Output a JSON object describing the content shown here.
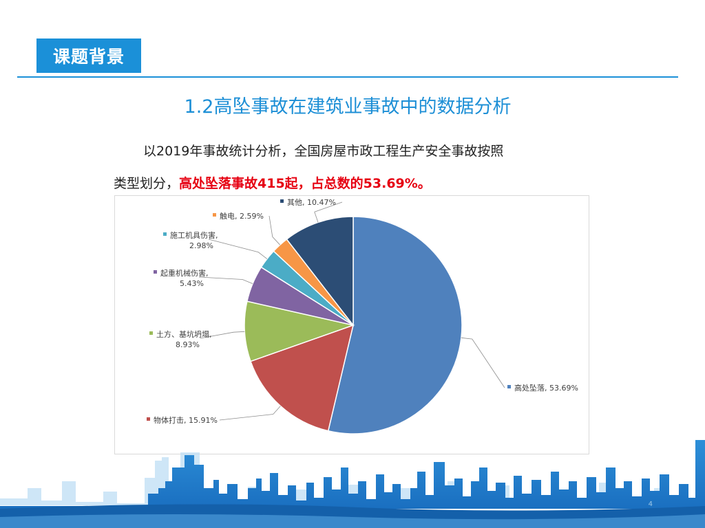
{
  "header": {
    "section_tag": "课题背景",
    "title": "1.2高坠事故在建筑业事故中的数据分析"
  },
  "body_text": {
    "line1": "以2019年事故统计分析，全国房屋市政工程生产安全事故按照",
    "line2_prefix": "类型划分，",
    "line2_highlight": "高处坠落事故415起，占总数的53.69%。"
  },
  "page_number": "4",
  "chart_data": {
    "type": "pie",
    "slices": [
      {
        "label": "高处坠落",
        "value": 53.69,
        "label_text": "高处坠落, 53.69%",
        "color": "#4f81bd"
      },
      {
        "label": "物体打击",
        "value": 15.91,
        "label_text": "物体打击, 15.91%",
        "color": "#c0504d"
      },
      {
        "label": "土方、基坑坍塌",
        "value": 8.93,
        "label_text": "土方、基坑坍塌,\n8.93%",
        "color": "#9bbb59"
      },
      {
        "label": "起重机械伤害",
        "value": 5.43,
        "label_text": "起重机械伤害,\n5.43%",
        "color": "#8064a2"
      },
      {
        "label": "施工机具伤害",
        "value": 2.98,
        "label_text": "施工机具伤害,\n2.98%",
        "color": "#4bacc6"
      },
      {
        "label": "触电",
        "value": 2.59,
        "label_text": "触电, 2.59%",
        "color": "#f79646"
      },
      {
        "label": "其他",
        "value": 10.47,
        "label_text": "其他, 10.47%",
        "color": "#2c4d75"
      }
    ]
  }
}
